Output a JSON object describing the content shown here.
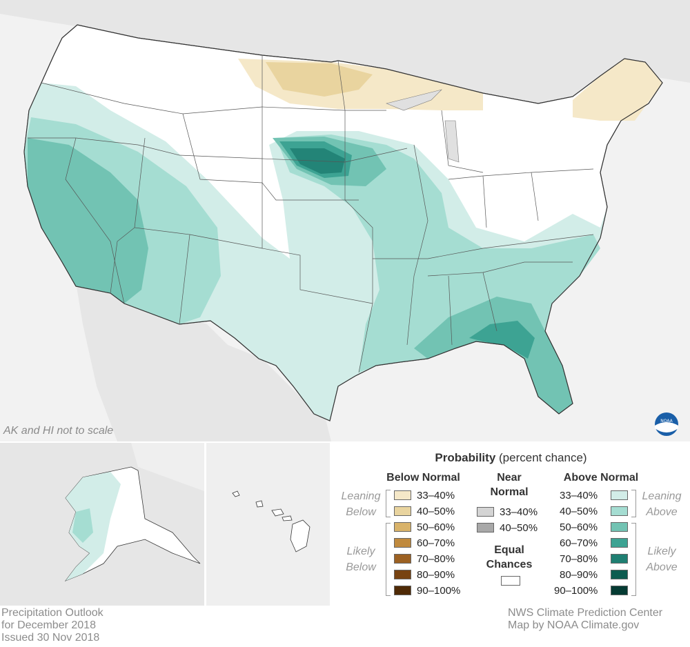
{
  "map": {
    "note": "AK and HI not to scale",
    "colors": {
      "background": "#f2f2f2",
      "land_us": "#ffffff",
      "below_33_40": "#f5e8c8",
      "below_40_50": "#e9d49f",
      "above_33_40": "#d2ede8",
      "above_40_50": "#a5ddd2",
      "above_50_60": "#72c3b3",
      "above_60_70": "#3da393",
      "above_70_80": "#1f7f72"
    },
    "logo": "noaa-logo"
  },
  "legend": {
    "title_bold": "Probability",
    "title_rest": " (percent chance)",
    "below_header": "Below Normal",
    "near_header_1": "Near",
    "near_header_2": "Normal",
    "above_header": "Above Normal",
    "leaning_below_1": "Leaning",
    "leaning_below_2": "Below",
    "likely_below_1": "Likely",
    "likely_below_2": "Below",
    "leaning_above_1": "Leaning",
    "leaning_above_2": "Above",
    "likely_above_1": "Likely",
    "likely_above_2": "Above",
    "equal_1": "Equal",
    "equal_2": "Chances",
    "below_items": [
      {
        "label": "33–40%",
        "color": "#f5e8c8"
      },
      {
        "label": "40–50%",
        "color": "#e9d49f"
      },
      {
        "label": "50–60%",
        "color": "#d9b36a"
      },
      {
        "label": "60–70%",
        "color": "#c08a3e"
      },
      {
        "label": "70–80%",
        "color": "#9c6122"
      },
      {
        "label": "80–90%",
        "color": "#784311"
      },
      {
        "label": "90–100%",
        "color": "#4f2a06"
      }
    ],
    "near_items": [
      {
        "label": "33–40%",
        "color": "#d4d4d4"
      },
      {
        "label": "40–50%",
        "color": "#a8a8a8"
      }
    ],
    "above_items": [
      {
        "label": "33–40%",
        "color": "#d2ede8"
      },
      {
        "label": "40–50%",
        "color": "#a5ddd2"
      },
      {
        "label": "50–60%",
        "color": "#72c3b3"
      },
      {
        "label": "60–70%",
        "color": "#3da393"
      },
      {
        "label": "70–80%",
        "color": "#1f7f72"
      },
      {
        "label": "80–90%",
        "color": "#0e5c50"
      },
      {
        "label": "90–100%",
        "color": "#053b33"
      }
    ],
    "equal_color": "#ffffff"
  },
  "footer": {
    "left_1": "Precipitation Outlook",
    "left_2": "for December 2018",
    "left_3": "Issued 30 Nov 2018",
    "right_1": "NWS Climate Prediction Center",
    "right_2": "Map by NOAA Climate.gov"
  }
}
